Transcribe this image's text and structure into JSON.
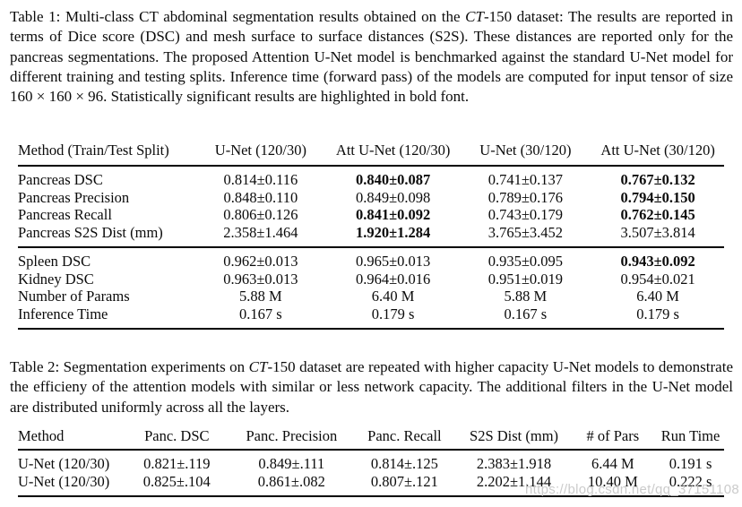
{
  "captions": {
    "t1": {
      "pre": "Table 1:  Multi-class CT abdominal segmentation results obtained on the ",
      "it": "CT",
      "post": "-150 dataset:  The results are reported in terms of Dice score (DSC) and mesh surface to surface distances (S2S). These distances are reported only for the pancreas segmentations. The proposed Attention U-Net model is benchmarked against the standard U-Net model for different training and testing splits.  Inference time (forward pass) of the models are computed for input tensor of size 160 × 160 × 96.  Statistically significant results are highlighted in bold font."
    },
    "t2": {
      "pre": "Table 2:  Segmentation experiments on ",
      "it": "CT",
      "post": "-150 dataset are repeated with higher capacity U-Net models to demonstrate the efficieny of the attention models with similar or less network capacity. The additional filters in the U-Net model are distributed uniformly across all the layers."
    }
  },
  "table1": {
    "headers": [
      "Method (Train/Test Split)",
      "U-Net (120/30)",
      "Att U-Net (120/30)",
      "U-Net (30/120)",
      "Att U-Net (30/120)"
    ],
    "sections": [
      {
        "rows": [
          {
            "label": "Pancreas DSC",
            "cells": [
              {
                "v": "0.814±0.116",
                "b": false
              },
              {
                "v": "0.840±0.087",
                "b": true
              },
              {
                "v": "0.741±0.137",
                "b": false
              },
              {
                "v": "0.767±0.132",
                "b": true
              }
            ]
          },
          {
            "label": "Pancreas Precision",
            "cells": [
              {
                "v": "0.848±0.110",
                "b": false
              },
              {
                "v": "0.849±0.098",
                "b": false
              },
              {
                "v": "0.789±0.176",
                "b": false
              },
              {
                "v": "0.794±0.150",
                "b": true
              }
            ]
          },
          {
            "label": "Pancreas Recall",
            "cells": [
              {
                "v": "0.806±0.126",
                "b": false
              },
              {
                "v": "0.841±0.092",
                "b": true
              },
              {
                "v": "0.743±0.179",
                "b": false
              },
              {
                "v": "0.762±0.145",
                "b": true
              }
            ]
          },
          {
            "label": "Pancreas S2S Dist (mm)",
            "cells": [
              {
                "v": "2.358±1.464",
                "b": false
              },
              {
                "v": "1.920±1.284",
                "b": true
              },
              {
                "v": "3.765±3.452",
                "b": false
              },
              {
                "v": "3.507±3.814",
                "b": false
              }
            ]
          }
        ]
      },
      {
        "rows": [
          {
            "label": "Spleen DSC",
            "cells": [
              {
                "v": "0.962±0.013",
                "b": false
              },
              {
                "v": "0.965±0.013",
                "b": false
              },
              {
                "v": "0.935±0.095",
                "b": false
              },
              {
                "v": "0.943±0.092",
                "b": true
              }
            ]
          },
          {
            "label": "Kidney DSC",
            "cells": [
              {
                "v": "0.963±0.013",
                "b": false
              },
              {
                "v": "0.964±0.016",
                "b": false
              },
              {
                "v": "0.951±0.019",
                "b": false
              },
              {
                "v": "0.954±0.021",
                "b": false
              }
            ]
          },
          {
            "label": "Number of Params",
            "cells": [
              {
                "v": "5.88 M",
                "b": false
              },
              {
                "v": "6.40 M",
                "b": false
              },
              {
                "v": "5.88 M",
                "b": false
              },
              {
                "v": "6.40 M",
                "b": false
              }
            ]
          },
          {
            "label": "Inference Time",
            "cells": [
              {
                "v": "0.167 s",
                "b": false
              },
              {
                "v": "0.179 s",
                "b": false
              },
              {
                "v": "0.167 s",
                "b": false
              },
              {
                "v": "0.179 s",
                "b": false
              }
            ]
          }
        ]
      }
    ]
  },
  "table2": {
    "headers": [
      "Method",
      "Panc. DSC",
      "Panc. Precision",
      "Panc. Recall",
      "S2S Dist (mm)",
      "# of Pars",
      "Run Time"
    ],
    "sections": [
      {
        "rows": [
          {
            "label": "U-Net (120/30)",
            "cells": [
              {
                "v": "0.821±.119",
                "b": false
              },
              {
                "v": "0.849±.111",
                "b": false
              },
              {
                "v": "0.814±.125",
                "b": false
              },
              {
                "v": "2.383±1.918",
                "b": false
              },
              {
                "v": "6.44 M",
                "b": false
              },
              {
                "v": "0.191 s",
                "b": false
              }
            ]
          },
          {
            "label": "U-Net (120/30)",
            "cells": [
              {
                "v": "0.825±.104",
                "b": false
              },
              {
                "v": "0.861±.082",
                "b": false
              },
              {
                "v": "0.807±.121",
                "b": false
              },
              {
                "v": "2.202±1.144",
                "b": false
              },
              {
                "v": "10.40 M",
                "b": false
              },
              {
                "v": "0.222 s",
                "b": false
              }
            ]
          }
        ]
      }
    ]
  },
  "watermark": {
    "text": "https://blog.csdn.net/qq_37151108",
    "color": "#c3c3c3"
  }
}
